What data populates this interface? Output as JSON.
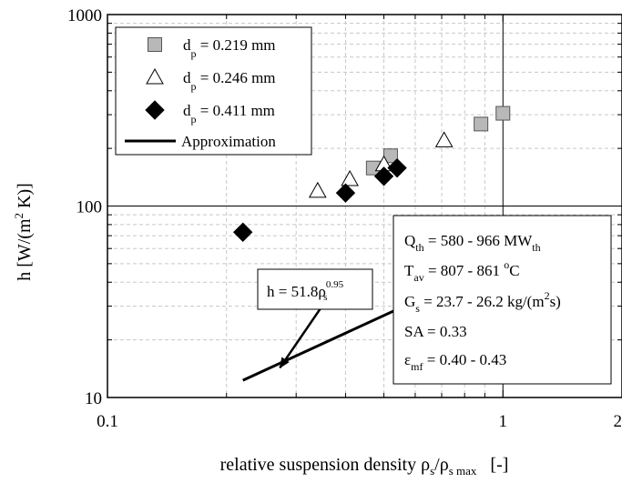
{
  "chart_data": {
    "type": "scatter",
    "x_scale": "log",
    "y_scale": "log",
    "xlim": [
      0.1,
      2
    ],
    "ylim": [
      10,
      1000
    ],
    "x_ticks": [
      {
        "value": 0.1,
        "label": "0.1"
      },
      {
        "value": 1,
        "label": "1"
      },
      {
        "value": 2,
        "label": "2"
      }
    ],
    "y_ticks": [
      {
        "value": 10,
        "label": "10"
      },
      {
        "value": 100,
        "label": "100"
      },
      {
        "value": 1000,
        "label": "1000"
      }
    ],
    "xlabel": {
      "main": "relative suspension density ρ",
      "sub1": "s",
      "mid": "/ρ",
      "sub2": "s max",
      "tail": "[-]"
    },
    "ylabel": {
      "main": "h  [W/(m",
      "sup": "2",
      "tail": " K)]"
    },
    "grid": "dashed minor and major",
    "reference_lines": {
      "x": 1,
      "y": 100
    },
    "series": [
      {
        "marker": "square",
        "color": "#b8b8b8",
        "legend": {
          "pre": "d",
          "sub": "p",
          "post": " = 0.219 mm"
        },
        "points": [
          [
            0.47,
            158
          ],
          [
            0.52,
            183
          ],
          [
            0.88,
            268
          ],
          [
            1.0,
            305
          ]
        ]
      },
      {
        "marker": "triangle",
        "color": "#ffffff",
        "legend": {
          "pre": "d",
          "sub": "p",
          "post": " = 0.246 mm"
        },
        "points": [
          [
            0.34,
            120
          ],
          [
            0.41,
            138
          ],
          [
            0.5,
            165
          ],
          [
            0.71,
            220
          ]
        ]
      },
      {
        "marker": "diamond",
        "color": "#000000",
        "legend": {
          "pre": "d",
          "sub": "p",
          "post": " = 0.411 mm"
        },
        "points": [
          [
            0.22,
            73
          ],
          [
            0.4,
            117
          ],
          [
            0.5,
            143
          ],
          [
            0.54,
            158
          ]
        ]
      }
    ],
    "fit": {
      "legend": "Approximation",
      "coef": 51.8,
      "exponent": 0.95,
      "x_range": [
        0.22,
        1.0
      ]
    },
    "callout": {
      "pre": "h = 51.8ρ",
      "sub": "s",
      "sup": "0.95",
      "arrow_to_x": 0.27
    },
    "info_box": [
      {
        "pre": "Q",
        "sub": "th",
        "post": " = 580 - 966 MW",
        "sub2": "th",
        "sup": "",
        "post2": ""
      },
      {
        "pre": "T",
        "sub": "av",
        "post": " = 807 - 861 ",
        "sub2": "",
        "sup": "o",
        "post2": "C"
      },
      {
        "pre": "G",
        "sub": "s",
        "post": " = 23.7 - 26.2 kg/(m",
        "sub2": "",
        "sup": "2",
        "post2": "s)"
      },
      {
        "pre": "SA = 0.33",
        "sub": "",
        "post": "",
        "sub2": "",
        "sup": "",
        "post2": ""
      },
      {
        "pre": "ε",
        "sub": "mf",
        "post": " = 0.40 - 0.43",
        "sub2": "",
        "sup": "",
        "post2": ""
      }
    ]
  }
}
